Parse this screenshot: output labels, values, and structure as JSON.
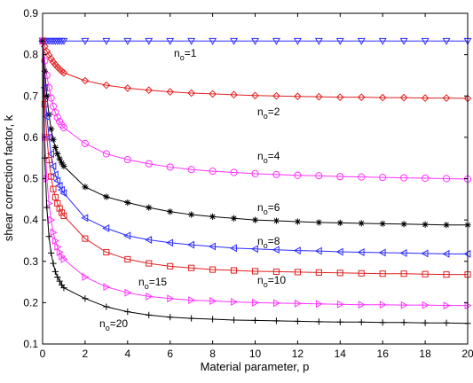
{
  "chart_data": {
    "type": "line",
    "title": "",
    "xlabel": "Material parameter, p",
    "ylabel": "shear correction factor, k",
    "xlim": [
      0,
      20
    ],
    "ylim": [
      0.1,
      0.9
    ],
    "xticks": [
      "0",
      "2",
      "4",
      "6",
      "8",
      "10",
      "12",
      "14",
      "16",
      "18",
      "20"
    ],
    "yticks": [
      "0.1",
      "0.2",
      "0.3",
      "0.4",
      "0.5",
      "0.6",
      "0.7",
      "0.8",
      "0.9"
    ],
    "grid": false,
    "legend": "inline labels",
    "x": [
      0,
      0.1,
      0.2,
      0.3,
      0.4,
      0.5,
      0.6,
      0.7,
      0.8,
      0.9,
      1,
      2,
      3,
      4,
      5,
      6,
      7,
      8,
      9,
      10,
      11,
      12,
      13,
      14,
      15,
      16,
      17,
      18,
      19,
      20
    ],
    "series": [
      {
        "name": "no=1",
        "label_main": "n",
        "label_sub": "o",
        "label_rest": "=1",
        "color": "#2b2bff",
        "marker": "triangle-down",
        "values": [
          0.833,
          0.833,
          0.833,
          0.833,
          0.833,
          0.833,
          0.833,
          0.833,
          0.833,
          0.833,
          0.833,
          0.833,
          0.833,
          0.833,
          0.833,
          0.833,
          0.833,
          0.833,
          0.833,
          0.833,
          0.833,
          0.833,
          0.833,
          0.833,
          0.833,
          0.833,
          0.833,
          0.833,
          0.833,
          0.833
        ]
      },
      {
        "name": "no=2",
        "label_main": "n",
        "label_sub": "o",
        "label_rest": "=2",
        "color": "#e02020",
        "marker": "diamond",
        "values": [
          0.833,
          0.82,
          0.808,
          0.799,
          0.79,
          0.782,
          0.776,
          0.77,
          0.765,
          0.76,
          0.756,
          0.737,
          0.726,
          0.719,
          0.714,
          0.71,
          0.707,
          0.705,
          0.703,
          0.701,
          0.7,
          0.699,
          0.698,
          0.697,
          0.697,
          0.696,
          0.696,
          0.695,
          0.695,
          0.694
        ]
      },
      {
        "name": "no=4",
        "label_main": "n",
        "label_sub": "o",
        "label_rest": "=4",
        "color": "#ff33ff",
        "marker": "circle",
        "values": [
          0.833,
          0.785,
          0.75,
          0.72,
          0.695,
          0.675,
          0.66,
          0.648,
          0.638,
          0.63,
          0.623,
          0.585,
          0.56,
          0.546,
          0.536,
          0.528,
          0.522,
          0.518,
          0.515,
          0.512,
          0.51,
          0.508,
          0.507,
          0.505,
          0.504,
          0.503,
          0.502,
          0.501,
          0.5,
          0.499
        ]
      },
      {
        "name": "no=6",
        "label_main": "n",
        "label_sub": "o",
        "label_rest": "=6",
        "color": "#000000",
        "marker": "star",
        "values": [
          0.833,
          0.76,
          0.7,
          0.655,
          0.62,
          0.595,
          0.575,
          0.56,
          0.548,
          0.538,
          0.53,
          0.48,
          0.456,
          0.442,
          0.43,
          0.42,
          0.413,
          0.408,
          0.404,
          0.4,
          0.398,
          0.396,
          0.394,
          0.393,
          0.392,
          0.391,
          0.39,
          0.389,
          0.388,
          0.388
        ]
      },
      {
        "name": "no=8",
        "label_main": "n",
        "label_sub": "o",
        "label_rest": "=8",
        "color": "#2b2bff",
        "marker": "triangle-left",
        "values": [
          0.833,
          0.72,
          0.65,
          0.6,
          0.56,
          0.53,
          0.51,
          0.495,
          0.483,
          0.473,
          0.465,
          0.405,
          0.38,
          0.362,
          0.352,
          0.345,
          0.34,
          0.336,
          0.332,
          0.33,
          0.328,
          0.326,
          0.325,
          0.323,
          0.322,
          0.321,
          0.32,
          0.319,
          0.318,
          0.318
        ]
      },
      {
        "name": "no=10",
        "label_main": "n",
        "label_sub": "o",
        "label_rest": "=10",
        "color": "#e02020",
        "marker": "square",
        "values": [
          0.833,
          0.68,
          0.6,
          0.545,
          0.505,
          0.475,
          0.455,
          0.44,
          0.428,
          0.418,
          0.41,
          0.355,
          0.322,
          0.305,
          0.295,
          0.288,
          0.284,
          0.28,
          0.278,
          0.276,
          0.275,
          0.274,
          0.273,
          0.272,
          0.271,
          0.27,
          0.27,
          0.269,
          0.268,
          0.268
        ]
      },
      {
        "name": "no=15",
        "label_main": "n",
        "label_sub": "o",
        "label_rest": "=15",
        "color": "#ff33ff",
        "marker": "triangle-right",
        "values": [
          0.833,
          0.6,
          0.5,
          0.44,
          0.4,
          0.37,
          0.35,
          0.335,
          0.322,
          0.312,
          0.305,
          0.262,
          0.238,
          0.224,
          0.215,
          0.21,
          0.206,
          0.204,
          0.202,
          0.2,
          0.199,
          0.198,
          0.197,
          0.196,
          0.195,
          0.195,
          0.194,
          0.194,
          0.193,
          0.193
        ]
      },
      {
        "name": "no=20",
        "label_main": "n",
        "label_sub": "o",
        "label_rest": "=20",
        "color": "#000000",
        "marker": "plus",
        "values": [
          0.833,
          0.55,
          0.43,
          0.36,
          0.32,
          0.295,
          0.275,
          0.262,
          0.252,
          0.243,
          0.236,
          0.21,
          0.19,
          0.178,
          0.17,
          0.165,
          0.162,
          0.16,
          0.158,
          0.157,
          0.156,
          0.155,
          0.154,
          0.153,
          0.153,
          0.152,
          0.152,
          0.151,
          0.151,
          0.15
        ]
      }
    ]
  }
}
